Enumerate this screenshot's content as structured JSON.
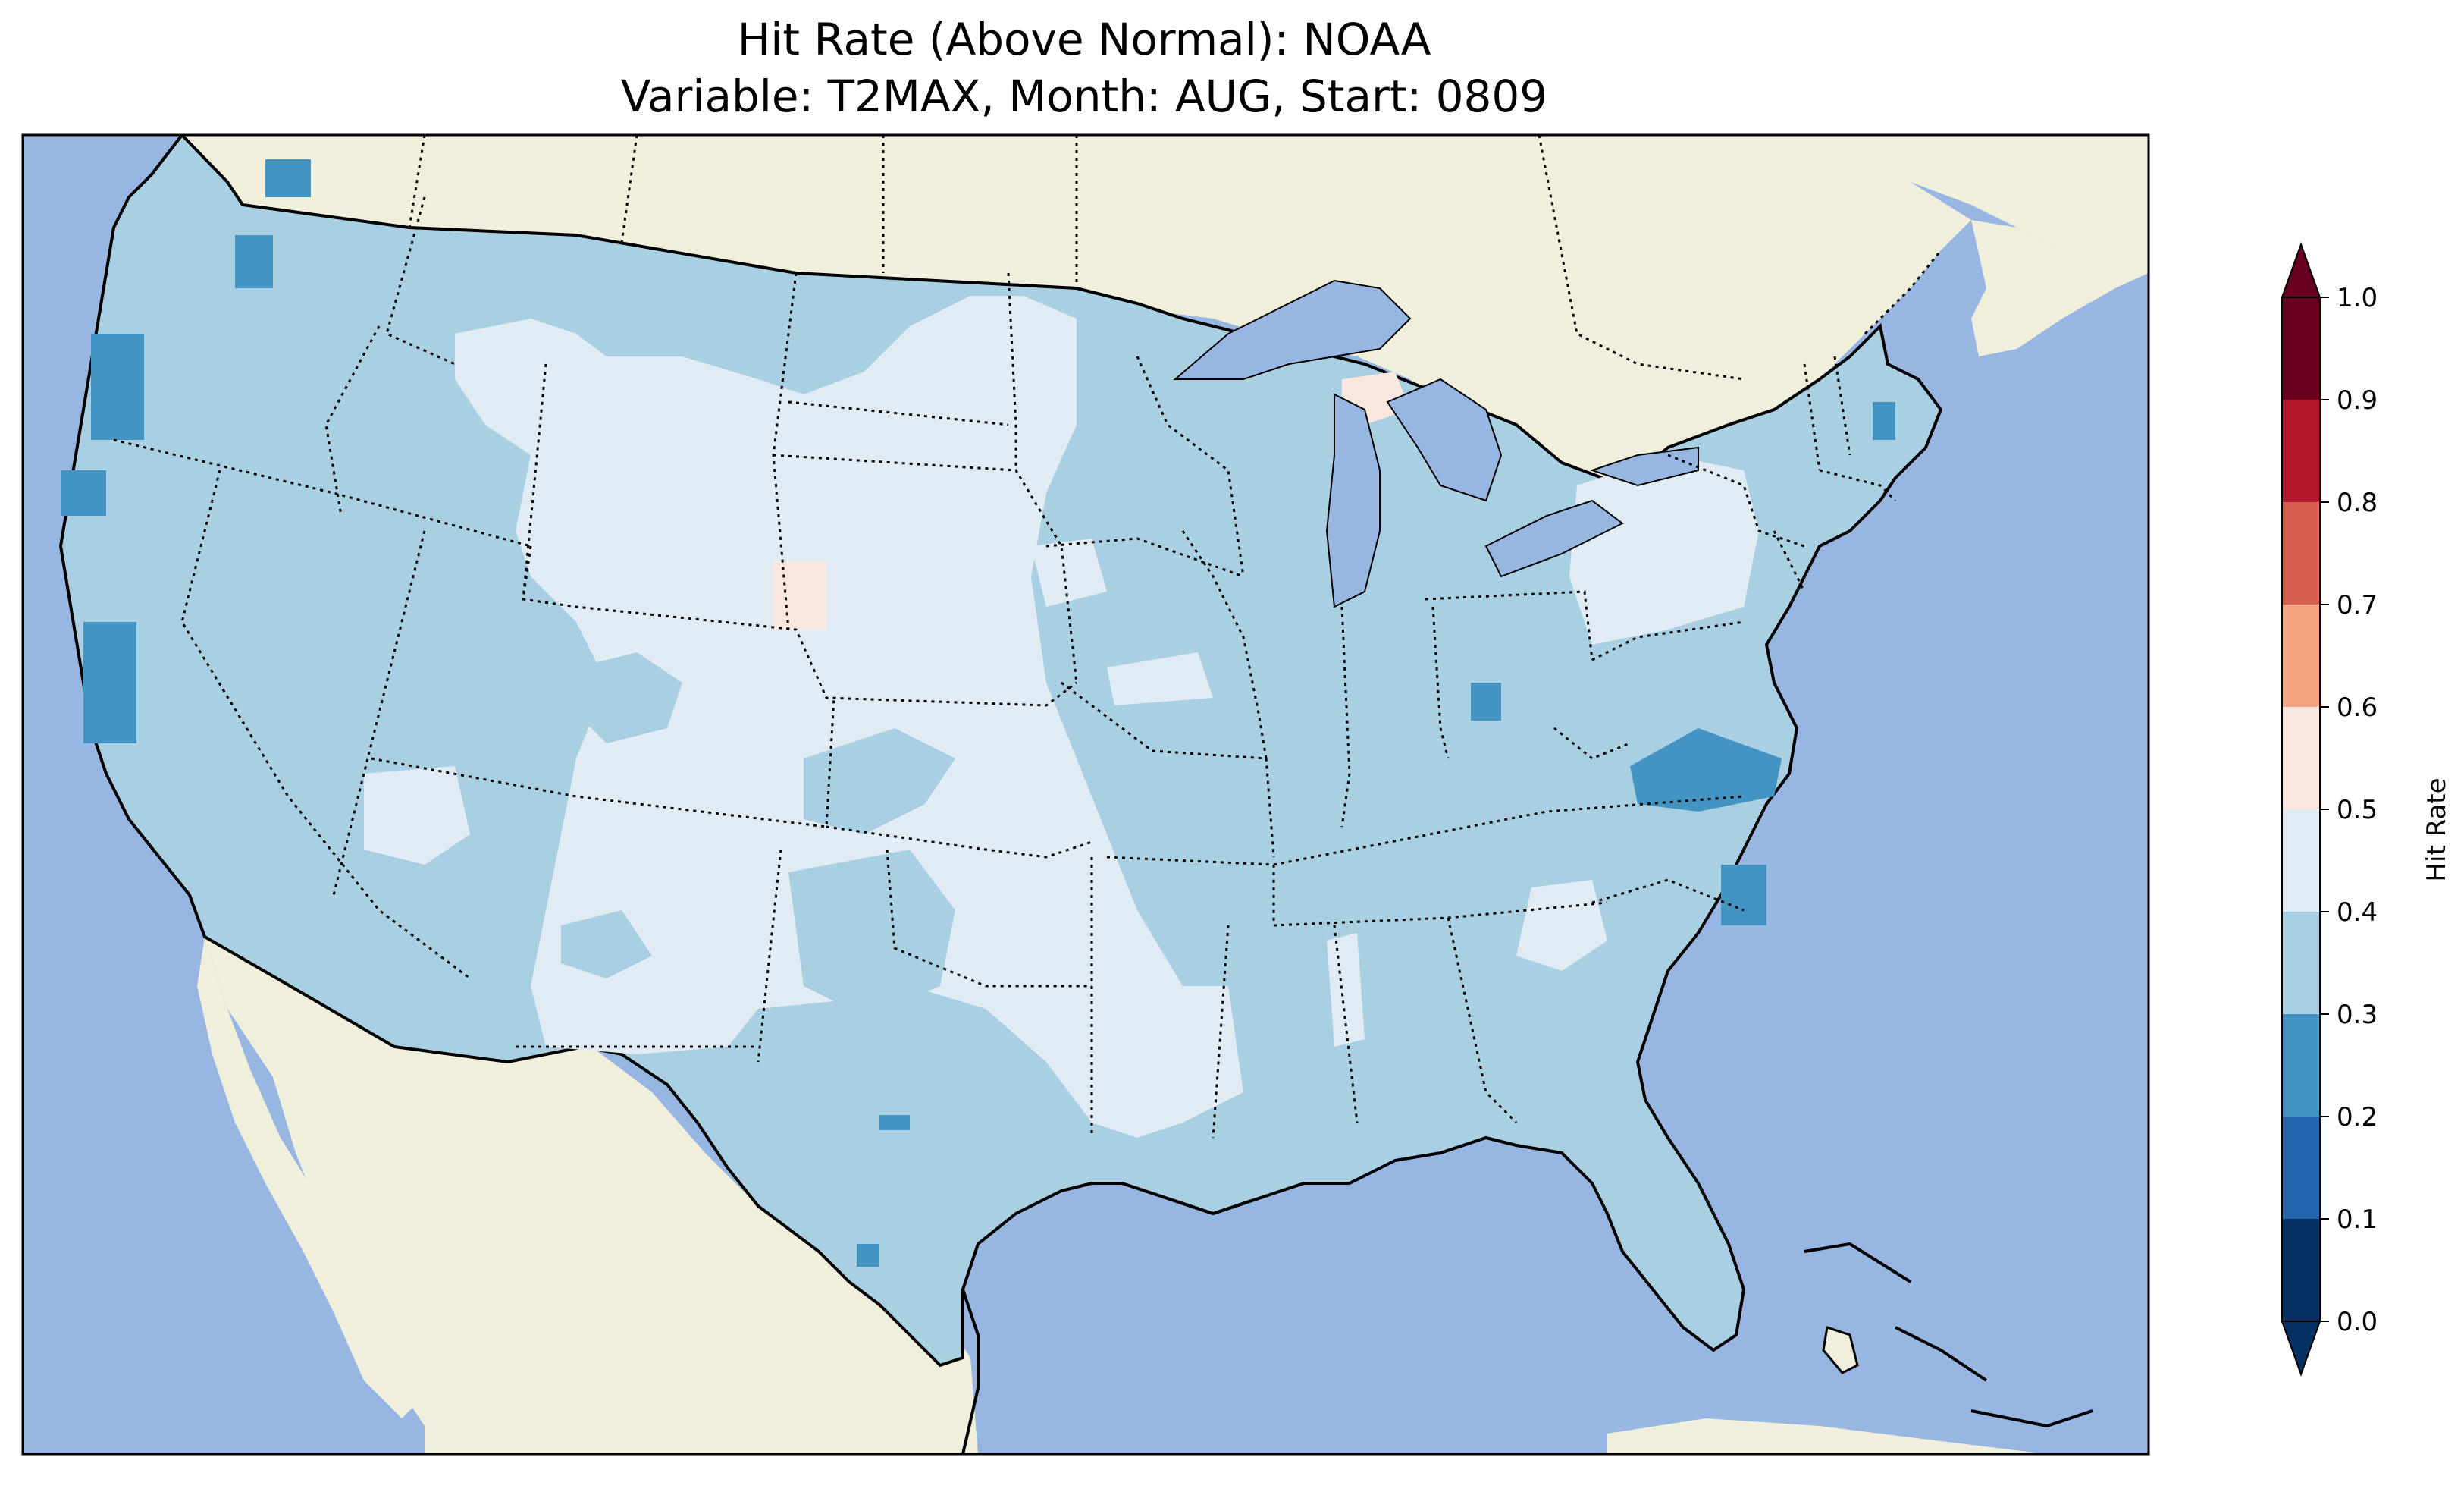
{
  "title": {
    "line1": "Hit Rate (Above Normal): NOAA",
    "line2": "Variable: T2MAX, Month: AUG, Start: 0809"
  },
  "colors": {
    "ocean": "#97b6e1",
    "land": "#efefdb",
    "lakes": "#97b6e1"
  },
  "colorbar": {
    "label": "Hit Rate",
    "ticks": [
      "0.0",
      "0.1",
      "0.2",
      "0.3",
      "0.4",
      "0.5",
      "0.6",
      "0.7",
      "0.8",
      "0.9",
      "1.0"
    ],
    "bins": [
      {
        "range": [
          0.0,
          0.1
        ],
        "color": "#053061"
      },
      {
        "range": [
          0.1,
          0.2
        ],
        "color": "#2166ac"
      },
      {
        "range": [
          0.2,
          0.3
        ],
        "color": "#4393c3"
      },
      {
        "range": [
          0.3,
          0.4
        ],
        "color": "#a9cfe3"
      },
      {
        "range": [
          0.4,
          0.5
        ],
        "color": "#e0ebf3"
      },
      {
        "range": [
          0.5,
          0.6
        ],
        "color": "#f8e6df"
      },
      {
        "range": [
          0.6,
          0.7
        ],
        "color": "#f4a582"
      },
      {
        "range": [
          0.7,
          0.8
        ],
        "color": "#d6604d"
      },
      {
        "range": [
          0.8,
          0.9
        ],
        "color": "#b2182b"
      },
      {
        "range": [
          0.9,
          1.0
        ],
        "color": "#67001f"
      }
    ],
    "extend": "both"
  }
}
